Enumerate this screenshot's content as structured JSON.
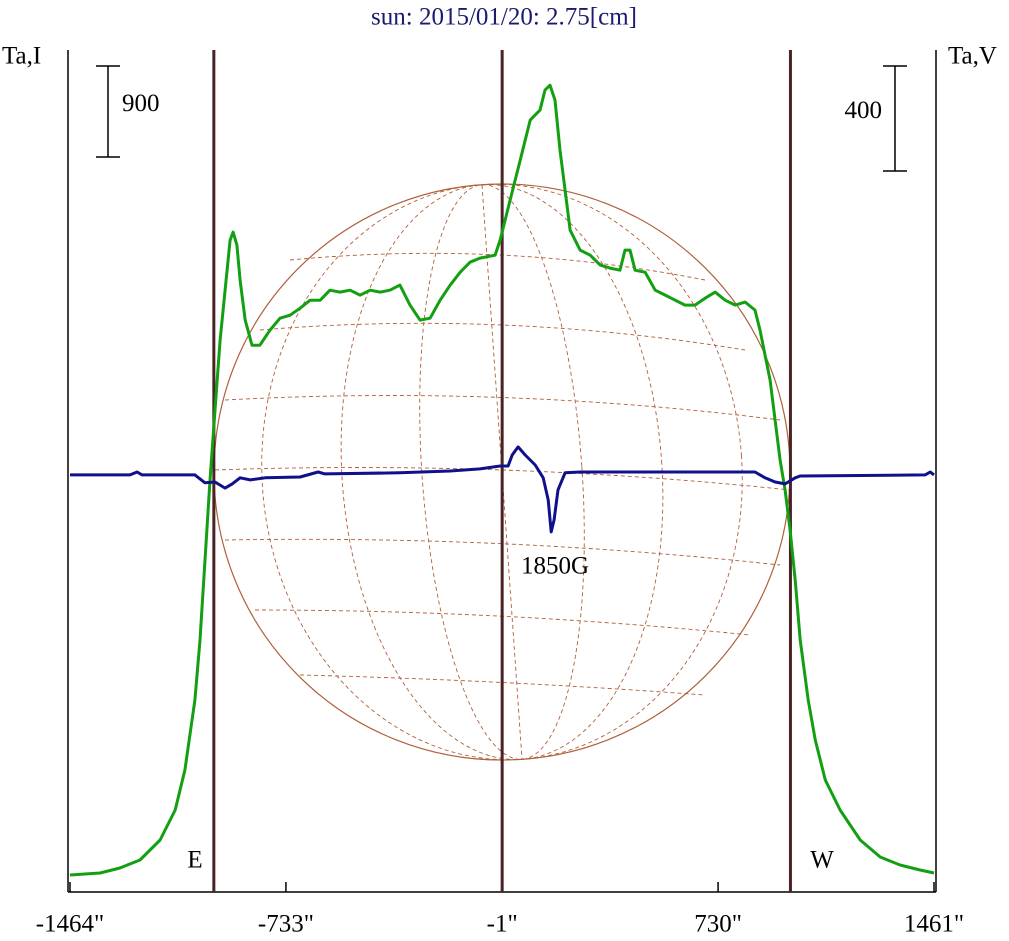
{
  "chart_data": {
    "type": "line",
    "title": "sun: 2015/01/20: 2.75[cm]",
    "y_label": "Ta,I",
    "y2_label": "Ta,V",
    "xlim": [
      -1464,
      1461
    ],
    "xticks": [
      {
        "value": -1464,
        "label": "-1464\""
      },
      {
        "value": -733,
        "label": "-733\""
      },
      {
        "value": -1,
        "label": "-1\""
      },
      {
        "value": 730,
        "label": "730\""
      },
      {
        "value": 1461,
        "label": "1461\""
      }
    ],
    "ylim": [
      0,
      8330
    ],
    "y2lim": [
      -1589,
      1619
    ],
    "i_scale": 900,
    "v_scale": 400,
    "vlines": [
      -977,
      -1,
      975
    ],
    "annotations": [
      {
        "text": "E"
      },
      {
        "text": "W"
      },
      {
        "text": "1850G"
      }
    ],
    "series": [
      {
        "name": "I",
        "color": "#12a012",
        "x": [
          -1464,
          -1362,
          -1295,
          -1227,
          -1159,
          -1108,
          -1075,
          -1041,
          -1024,
          -1007,
          -990,
          -973,
          -956,
          -939,
          -922,
          -912,
          -899,
          -888,
          -871,
          -848,
          -821,
          -787,
          -753,
          -719,
          -685,
          -651,
          -617,
          -584,
          -550,
          -516,
          -482,
          -448,
          -414,
          -381,
          -347,
          -313,
          -279,
          -245,
          -211,
          -177,
          -143,
          -110,
          -76,
          -25,
          -8,
          9,
          26,
          60,
          94,
          127,
          144,
          161,
          178,
          195,
          212,
          229,
          263,
          297,
          331,
          364,
          398,
          415,
          432,
          449,
          483,
          517,
          551,
          585,
          618,
          652,
          686,
          720,
          754,
          788,
          822,
          855,
          872,
          906,
          923,
          940,
          957,
          974,
          991,
          1008,
          1035,
          1059,
          1093,
          1143,
          1211,
          1279,
          1346,
          1414,
          1461
        ],
        "values": [
          168,
          188,
          237,
          317,
          514,
          811,
          1207,
          1899,
          2493,
          3284,
          4075,
          4767,
          5460,
          5954,
          6449,
          6528,
          6400,
          6053,
          5658,
          5410,
          5410,
          5559,
          5677,
          5706,
          5776,
          5855,
          5855,
          5954,
          5935,
          5954,
          5905,
          5954,
          5935,
          5954,
          6004,
          5806,
          5658,
          5677,
          5855,
          6004,
          6132,
          6231,
          6271,
          6300,
          6449,
          6647,
          6845,
          7240,
          7636,
          7735,
          7933,
          7982,
          7834,
          7339,
          6943,
          6548,
          6350,
          6300,
          6202,
          6172,
          6152,
          6350,
          6350,
          6152,
          6132,
          5954,
          5905,
          5855,
          5806,
          5806,
          5875,
          5935,
          5855,
          5806,
          5836,
          5757,
          5559,
          5064,
          4668,
          4273,
          3976,
          3580,
          3086,
          2493,
          1899,
          1503,
          1108,
          811,
          514,
          346,
          267,
          218,
          188
        ]
      },
      {
        "name": "V",
        "color": "#10108c",
        "axis": "y2",
        "x": [
          -1464,
          -1261,
          -1237,
          -1220,
          -1041,
          -1007,
          -973,
          -939,
          -915,
          -888,
          -854,
          -804,
          -685,
          -624,
          -601,
          -347,
          -177,
          -76,
          -8,
          19,
          33,
          53,
          77,
          111,
          138,
          155,
          165,
          175,
          188,
          212,
          263,
          669,
          855,
          889,
          923,
          957,
          991,
          1008,
          1431,
          1448,
          1461
        ],
        "values": [
          0,
          0,
          11,
          0,
          0,
          -30,
          -27,
          -50,
          -34,
          -11,
          -19,
          -11,
          -8,
          11,
          4,
          8,
          15,
          23,
          34,
          34,
          76,
          107,
          76,
          38,
          -11,
          -95,
          -217,
          -171,
          -57,
          8,
          11,
          11,
          11,
          -11,
          -27,
          -34,
          -11,
          -4,
          0,
          11,
          0
        ]
      }
    ]
  }
}
